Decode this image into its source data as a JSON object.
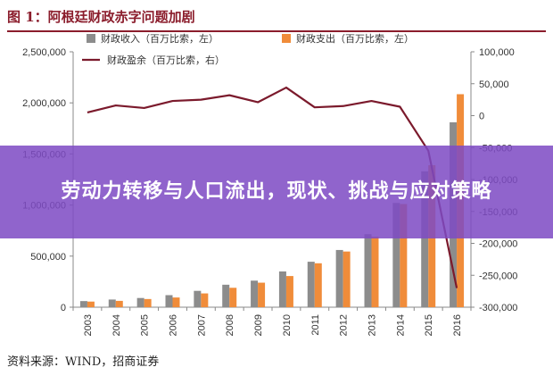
{
  "figure": {
    "title": "图 1：阿根廷财政赤字问题加剧",
    "source": "资料来源：WIND，招商证券"
  },
  "overlay": {
    "headline": "劳动力转移与人口流出，现状、挑战与应对策略"
  },
  "colors": {
    "income": "#8c8c8c",
    "expense": "#f08c3a",
    "balance": "#7b1a2c",
    "title": "#8b1d2c",
    "overlay": "#7e4bc4"
  },
  "chart_data": {
    "type": "bar",
    "categories": [
      "2003",
      "2004",
      "2005",
      "2006",
      "2007",
      "2008",
      "2009",
      "2010",
      "2011",
      "2012",
      "2013",
      "2014",
      "2015",
      "2016"
    ],
    "series": [
      {
        "name": "财政收入（百万比索，左）",
        "kind": "bar",
        "axis": "left",
        "values": [
          60000,
          75000,
          90000,
          118000,
          160000,
          220000,
          260000,
          350000,
          445000,
          560000,
          715000,
          1020000,
          1330000,
          1810000
        ]
      },
      {
        "name": "财政支出（百万比索，左）",
        "kind": "bar",
        "axis": "left",
        "values": [
          55000,
          62000,
          80000,
          95000,
          135000,
          190000,
          240000,
          305000,
          430000,
          545000,
          690000,
          1010000,
          1390000,
          2085000
        ]
      },
      {
        "name": "财政盈余（百万比索，右）",
        "kind": "line",
        "axis": "right",
        "values": [
          5000,
          16000,
          12000,
          23000,
          25000,
          32000,
          21000,
          44000,
          13000,
          15000,
          23000,
          14000,
          -55000,
          -270000
        ]
      }
    ],
    "left_axis": {
      "min": 0,
      "max": 2500000,
      "ticks": [
        "0",
        "500,000",
        "1,000,000",
        "1,500,000",
        "2,000,000",
        "2,500,000"
      ],
      "tick_values": [
        0,
        500000,
        1000000,
        1500000,
        2000000,
        2500000
      ]
    },
    "right_axis": {
      "min": -300000,
      "max": 100000,
      "ticks": [
        "-300,000",
        "-250,000",
        "-200,000",
        "-150,000",
        "-100,000",
        "-50,000",
        "0",
        "50,000",
        "100,000"
      ],
      "tick_values": [
        -300000,
        -250000,
        -200000,
        -150000,
        -100000,
        -50000,
        0,
        50000,
        100000
      ]
    },
    "grid": false,
    "legend": "top"
  }
}
